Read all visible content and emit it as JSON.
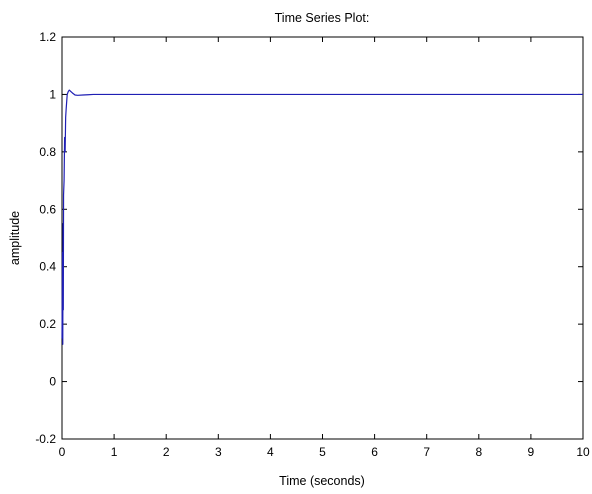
{
  "chart_data": {
    "type": "line",
    "title": "Time Series Plot:",
    "xlabel": "Time (seconds)",
    "ylabel": "amplitude",
    "xlim": [
      0,
      10
    ],
    "ylim": [
      -0.2,
      1.2
    ],
    "x_ticks": [
      0,
      1,
      2,
      3,
      4,
      5,
      6,
      7,
      8,
      9,
      10
    ],
    "x_tick_labels": [
      "0",
      "1",
      "2",
      "3",
      "4",
      "5",
      "6",
      "7",
      "8",
      "9",
      "10"
    ],
    "y_ticks": [
      -0.2,
      0,
      0.2,
      0.4,
      0.6,
      0.8,
      1,
      1.2
    ],
    "y_tick_labels": [
      "-0.2",
      "0",
      "0.2",
      "0.4",
      "0.6",
      "0.8",
      "1",
      "1.2"
    ],
    "grid": false,
    "series": [
      {
        "color": "#1f1fb4",
        "x": [
          0.0,
          0.01,
          0.015,
          0.02,
          0.025,
          0.03,
          0.04,
          0.05,
          0.06,
          0.07,
          0.08,
          0.1,
          0.12,
          0.14,
          0.17,
          0.2,
          0.25,
          0.3,
          0.4,
          0.5,
          0.6,
          0.8,
          1.0,
          1.5,
          2.0,
          3.0,
          4.0,
          5.0,
          6.0,
          7.0,
          8.0,
          9.0,
          10.0
        ],
        "y": [
          0.15,
          0.45,
          0.13,
          0.55,
          0.25,
          0.65,
          0.7,
          0.85,
          0.8,
          0.92,
          0.95,
          1.0,
          1.01,
          1.015,
          1.01,
          1.005,
          0.998,
          0.997,
          0.998,
          0.999,
          1.0,
          1.0,
          1.0,
          1.0,
          1.0,
          1.0,
          1.0,
          1.0,
          1.0,
          1.0,
          1.0,
          1.0,
          1.0
        ]
      }
    ]
  }
}
